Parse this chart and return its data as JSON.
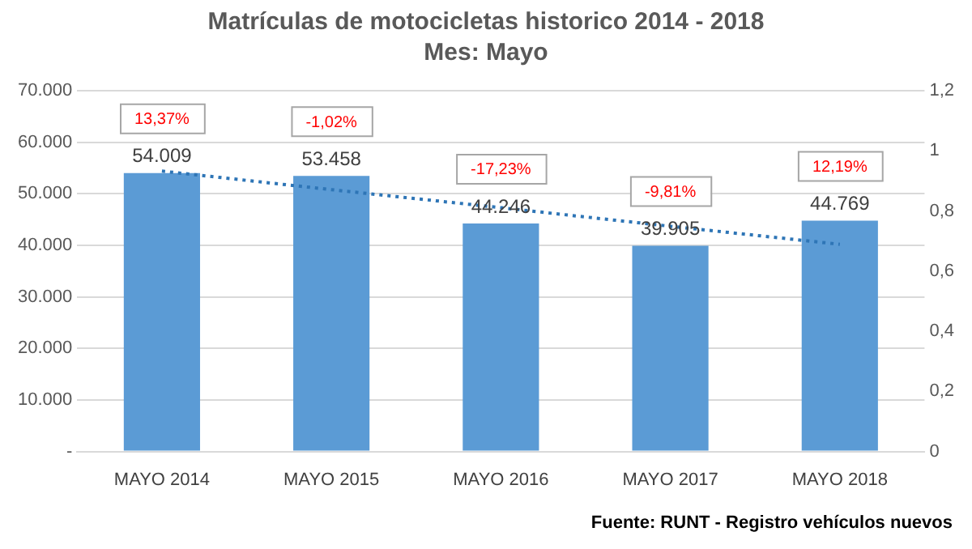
{
  "chart_data": {
    "type": "bar",
    "title": "Matrículas de motocicletas historico 2014 - 2018",
    "subtitle": "Mes: Mayo",
    "categories": [
      "MAYO 2014",
      "MAYO 2015",
      "MAYO 2016",
      "MAYO 2017",
      "MAYO 2018"
    ],
    "series": [
      {
        "color": "#5b9bd5",
        "values": [
          54009,
          53458,
          44246,
          39905,
          44769
        ],
        "value_labels": [
          "54.009",
          "53.458",
          "44.246",
          "39.905",
          "44.769"
        ]
      },
      {
        "type": "line",
        "color": "#2e75b6",
        "line_style": "dotted",
        "marker": "none",
        "x": [
          "MAYO 2014",
          "MAYO 2015",
          "MAYO 2016",
          "MAYO 2017",
          "MAYO 2018"
        ],
        "values": [
          54400,
          50800,
          47300,
          43700,
          40200
        ]
      }
    ],
    "ylim": [
      0,
      70000
    ],
    "yticks": [
      {
        "value": 0,
        "label": "-"
      },
      {
        "value": 10000,
        "label": "10.000"
      },
      {
        "value": 20000,
        "label": "20.000"
      },
      {
        "value": 30000,
        "label": "30.000"
      },
      {
        "value": 40000,
        "label": "40.000"
      },
      {
        "value": 50000,
        "label": "50.000"
      },
      {
        "value": 60000,
        "label": "60.000"
      },
      {
        "value": 70000,
        "label": "70.000"
      }
    ],
    "y2lim": [
      0,
      1.2
    ],
    "y2ticks": [
      0,
      {
        "value": 0.2,
        "label": "0,2"
      },
      {
        "value": 0.4,
        "label": "0,4"
      },
      {
        "value": 0.6,
        "label": "0,6"
      },
      {
        "value": 0.8,
        "label": "0,8"
      },
      1,
      {
        "value": 1.2,
        "label": "1,2"
      }
    ],
    "grid": "y",
    "legend": false,
    "annotations": [
      "13,37%",
      "-1,02%",
      "-17,23%",
      "-9,81%",
      "12,19%",
      "Fuente: RUNT - Registro vehículos nuevos"
    ]
  }
}
